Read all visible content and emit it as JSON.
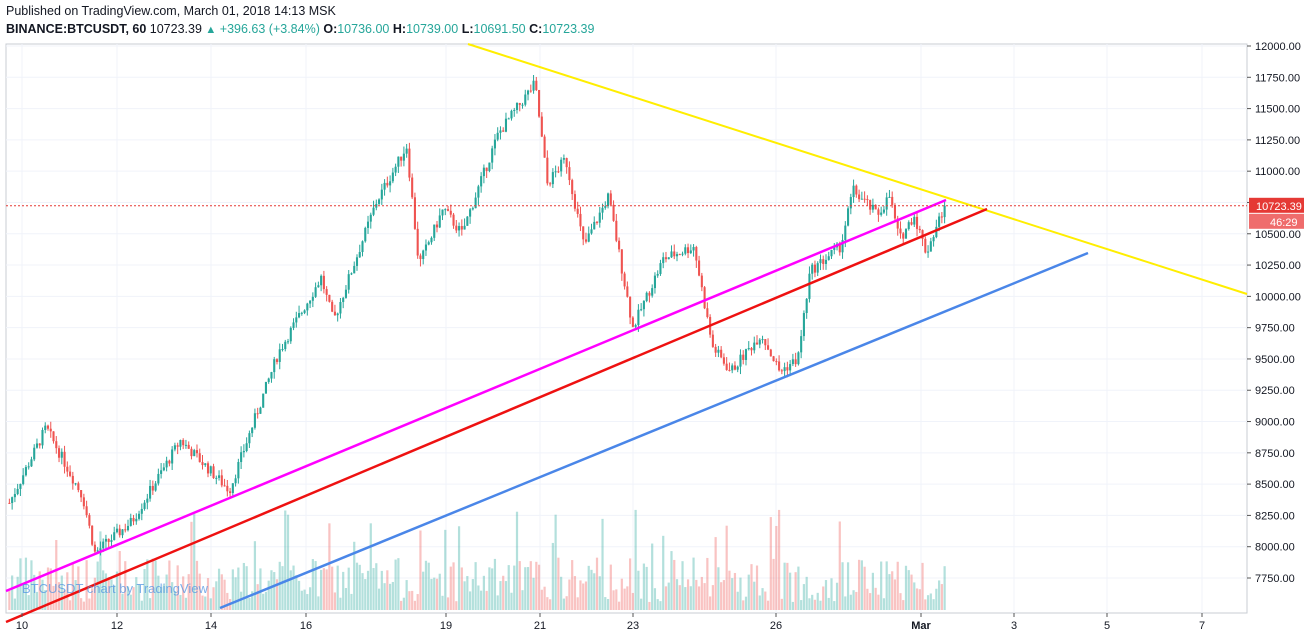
{
  "header": {
    "published": "Published on TradingView.com, March 01, 2018 14:13 MSK",
    "symbol": "BINANCE:BTCUSDT, 60",
    "last": "10723.39",
    "change": "+396.63 (+3.84%)",
    "o_label": "O:",
    "o_value": "10736.00",
    "h_label": "H:",
    "h_value": "10739.00",
    "l_label": "L:",
    "l_value": "10691.50",
    "c_label": "C:",
    "c_value": "10723.39"
  },
  "watermark": "BTCUSDT chart by TradingView",
  "price_marker": "10723.39",
  "timer_marker": "46:29",
  "colors": {
    "up": "#26a69a",
    "down": "#ef5350",
    "trend_yellow": "#ffee00",
    "trend_magenta": "#ff00ff",
    "trend_red": "#ee1111",
    "trend_blue": "#4a86e8",
    "price_line": "#e53935"
  },
  "chart_data": {
    "type": "candlestick",
    "symbol": "BINANCE:BTCUSDT",
    "interval": "60",
    "ylim": [
      7450,
      12050
    ],
    "y_ticks": [
      12000,
      11750,
      11500,
      11250,
      11000,
      10750,
      10500,
      10250,
      10000,
      9750,
      9500,
      9250,
      9000,
      8750,
      8500,
      8250,
      8000,
      7750
    ],
    "y_tick_labels": [
      "12000.00",
      "11750.00",
      "11500.00",
      "11250.00",
      "11000.00",
      "10750.00",
      "10500.00",
      "10250.00",
      "10000.00",
      "9750.00",
      "9500.00",
      "9250.00",
      "9000.00",
      "8750.00",
      "8500.00",
      "8250.00",
      "8000.00",
      "7750.00"
    ],
    "x_tick_labels": [
      "10",
      "12",
      "14",
      "16",
      "19",
      "21",
      "23",
      "26",
      "Mar",
      "3",
      "5",
      "7"
    ],
    "last_price": 10723.39,
    "close_path": [
      {
        "x": 0,
        "y": 8350
      },
      {
        "x": 0.03,
        "y": 8950
      },
      {
        "x": 0.06,
        "y": 8400
      },
      {
        "x": 0.07,
        "y": 7950
      },
      {
        "x": 0.1,
        "y": 8200
      },
      {
        "x": 0.14,
        "y": 8850
      },
      {
        "x": 0.18,
        "y": 8450
      },
      {
        "x": 0.22,
        "y": 9550
      },
      {
        "x": 0.255,
        "y": 10150
      },
      {
        "x": 0.265,
        "y": 9800
      },
      {
        "x": 0.3,
        "y": 10750
      },
      {
        "x": 0.325,
        "y": 11200
      },
      {
        "x": 0.335,
        "y": 10250
      },
      {
        "x": 0.355,
        "y": 10700
      },
      {
        "x": 0.37,
        "y": 10500
      },
      {
        "x": 0.4,
        "y": 11300
      },
      {
        "x": 0.43,
        "y": 11700
      },
      {
        "x": 0.44,
        "y": 10900
      },
      {
        "x": 0.455,
        "y": 11100
      },
      {
        "x": 0.47,
        "y": 10400
      },
      {
        "x": 0.49,
        "y": 10800
      },
      {
        "x": 0.51,
        "y": 9750
      },
      {
        "x": 0.535,
        "y": 10300
      },
      {
        "x": 0.56,
        "y": 10400
      },
      {
        "x": 0.575,
        "y": 9600
      },
      {
        "x": 0.59,
        "y": 9400
      },
      {
        "x": 0.615,
        "y": 9700
      },
      {
        "x": 0.63,
        "y": 9400
      },
      {
        "x": 0.645,
        "y": 9500
      },
      {
        "x": 0.655,
        "y": 10200
      },
      {
        "x": 0.68,
        "y": 10400
      },
      {
        "x": 0.69,
        "y": 10850
      },
      {
        "x": 0.71,
        "y": 10650
      },
      {
        "x": 0.72,
        "y": 10800
      },
      {
        "x": 0.728,
        "y": 10450
      },
      {
        "x": 0.74,
        "y": 10650
      },
      {
        "x": 0.75,
        "y": 10350
      },
      {
        "x": 0.765,
        "y": 10723
      }
    ],
    "x_range": [
      0,
      1
    ]
  }
}
